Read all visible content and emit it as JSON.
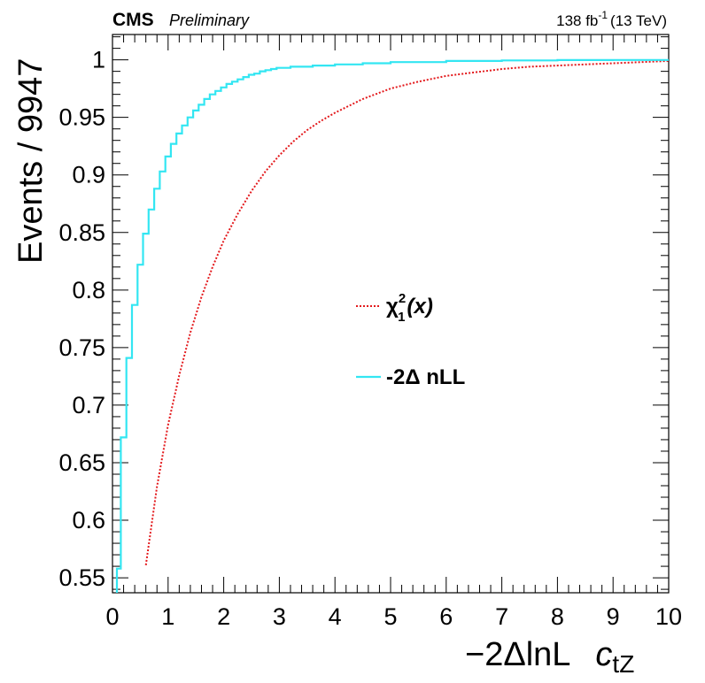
{
  "header": {
    "experiment": "CMS",
    "status": "Preliminary",
    "lumi_value": "138 fb",
    "lumi_exp": "-1",
    "energy": "(13 TeV)"
  },
  "axes": {
    "ylabel": "Events / 9947",
    "xlabel_main": "−2ΔlnL",
    "xlabel_param_base": "c",
    "xlabel_param_sub": "tZ"
  },
  "legend": {
    "chi2_base": "χ",
    "chi2_sup": "2",
    "chi2_sub": "1",
    "chi2_arg": "(x)",
    "nll_label": "-2Δ nLL"
  },
  "colors": {
    "chi2": "#e3191c",
    "nll": "#33e6f2",
    "axis": "#000000"
  },
  "chart_data": {
    "type": "line",
    "xlim": [
      0,
      10
    ],
    "ylim": [
      0.537,
      1.022
    ],
    "x_ticks": [
      0,
      1,
      2,
      3,
      4,
      5,
      6,
      7,
      8,
      9,
      10
    ],
    "y_ticks": [
      0.55,
      0.6,
      0.65,
      0.7,
      0.75,
      0.8,
      0.85,
      0.9,
      0.95,
      1
    ],
    "y_tick_labels": [
      "0.55",
      "0.6",
      "0.65",
      "0.7",
      "0.75",
      "0.8",
      "0.85",
      "0.9",
      "0.95",
      "1"
    ],
    "legend_position": "center",
    "series": [
      {
        "name": "χ²₁(x)",
        "style": "dotted",
        "x": [
          0.6,
          0.8,
          1.0,
          1.2,
          1.4,
          1.6,
          1.8,
          2.0,
          2.25,
          2.5,
          2.75,
          3.0,
          3.25,
          3.5,
          3.75,
          4.0,
          4.5,
          5.0,
          5.5,
          6.0,
          6.5,
          7.0,
          7.5,
          8.0,
          8.5,
          9.0,
          9.5,
          10.0
        ],
        "y": [
          0.561,
          0.629,
          0.683,
          0.726,
          0.763,
          0.794,
          0.82,
          0.843,
          0.866,
          0.886,
          0.903,
          0.917,
          0.929,
          0.939,
          0.947,
          0.954,
          0.966,
          0.975,
          0.981,
          0.986,
          0.989,
          0.992,
          0.994,
          0.995,
          0.996,
          0.997,
          0.998,
          0.999
        ]
      },
      {
        "name": "-2Δ nLL",
        "style": "step",
        "x": [
          0.08,
          0.15,
          0.25,
          0.35,
          0.45,
          0.55,
          0.65,
          0.75,
          0.85,
          0.95,
          1.05,
          1.15,
          1.25,
          1.35,
          1.45,
          1.55,
          1.65,
          1.75,
          1.85,
          1.95,
          2.05,
          2.15,
          2.25,
          2.35,
          2.45,
          2.55,
          2.65,
          2.75,
          2.85,
          2.95,
          3.2,
          3.6,
          4.0,
          4.5,
          5.0,
          5.5,
          6.0,
          6.5,
          7.0,
          8.0,
          9.0,
          10.0
        ],
        "y": [
          0.558,
          0.672,
          0.741,
          0.787,
          0.822,
          0.849,
          0.87,
          0.888,
          0.903,
          0.916,
          0.927,
          0.936,
          0.943,
          0.95,
          0.956,
          0.961,
          0.966,
          0.97,
          0.973,
          0.976,
          0.979,
          0.981,
          0.983,
          0.985,
          0.987,
          0.988,
          0.99,
          0.991,
          0.992,
          0.993,
          0.994,
          0.995,
          0.996,
          0.997,
          0.998,
          0.998,
          0.999,
          0.999,
          0.9995,
          0.9998,
          0.9999,
          1.0
        ]
      }
    ]
  }
}
